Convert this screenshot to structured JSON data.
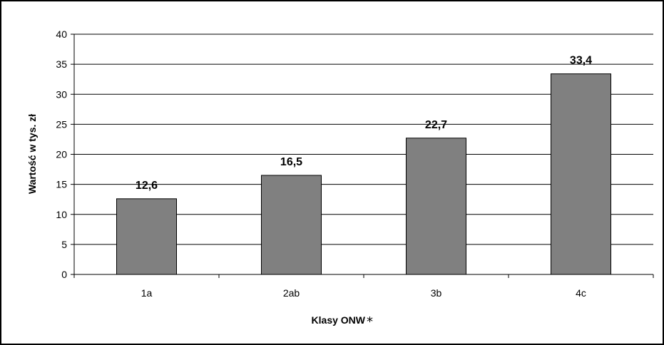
{
  "chart_data": {
    "type": "bar",
    "categories": [
      "1a",
      "2ab",
      "3b",
      "4c"
    ],
    "values": [
      12.6,
      16.5,
      22.7,
      33.4
    ],
    "value_labels": [
      "12,6",
      "16,5",
      "22,7",
      "33,4"
    ],
    "title": "",
    "xlabel": "Klasy ONW",
    "xlabel_suffix": "*",
    "ylabel": "Wartość w tys. zł",
    "ylim": [
      0,
      40
    ],
    "yticks": [
      0,
      5,
      10,
      15,
      20,
      25,
      30,
      35,
      40
    ],
    "grid": true,
    "legend": "none",
    "bar_color": "#808080",
    "bar_edge_color": "#000000",
    "grid_color": "#000000"
  }
}
